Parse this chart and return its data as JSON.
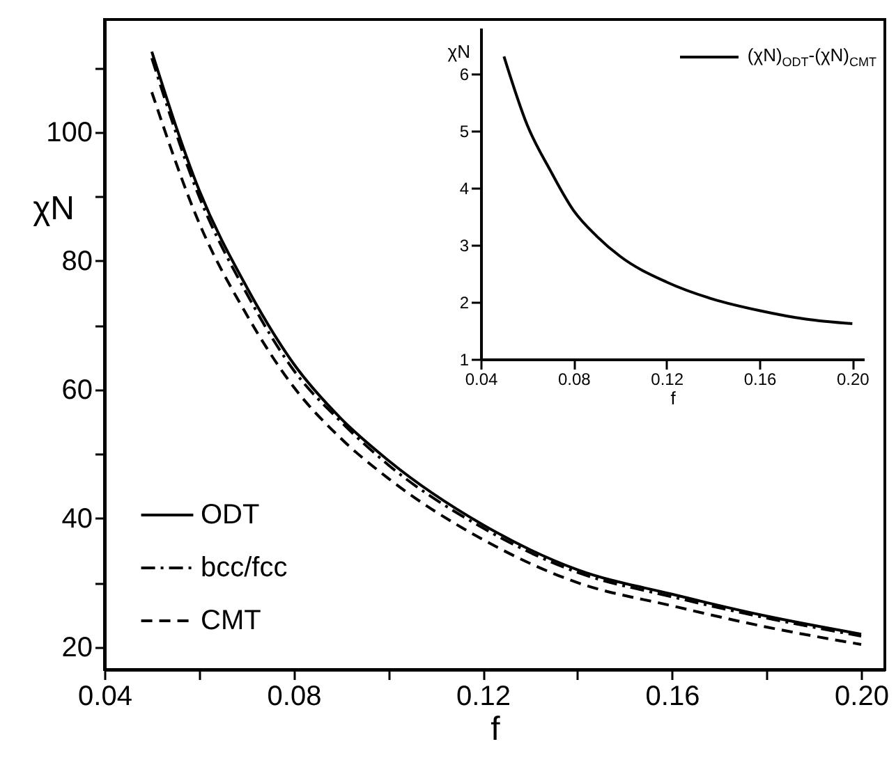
{
  "chart_data": [
    {
      "type": "line",
      "xlabel": "f",
      "ylabel": "χN",
      "x": [
        0.05,
        0.06,
        0.07,
        0.08,
        0.09,
        0.1,
        0.12,
        0.14,
        0.16,
        0.18,
        0.2
      ],
      "series": [
        {
          "name": "ODT",
          "color": "#000000",
          "line_style": "solid",
          "values": [
            112.5,
            91,
            76,
            64,
            55.5,
            49,
            39,
            32,
            28.2,
            24.8,
            22
          ]
        },
        {
          "name": "bcc/fcc",
          "color": "#000000",
          "line_style": "dashdot",
          "values": [
            111.5,
            90,
            75,
            63,
            55,
            48.3,
            38.5,
            31.6,
            27.8,
            24.5,
            21.7
          ]
        },
        {
          "name": "CMT",
          "color": "#000000",
          "line_style": "dashed",
          "values": [
            106.2,
            85.9,
            71.7,
            60.4,
            52.4,
            46.2,
            36.7,
            30,
            26.4,
            23.1,
            20.4
          ]
        }
      ],
      "xlim": [
        0.04,
        0.205
      ],
      "ylim": [
        16.5,
        117.5
      ],
      "xticks": [
        0.04,
        {
          "value": 0.06,
          "label": null
        },
        0.08,
        {
          "value": 0.1,
          "label": null
        },
        0.12,
        {
          "value": 0.14,
          "label": null
        },
        0.16,
        {
          "value": 0.18,
          "label": null
        },
        {
          "value": 0.2,
          "label": "0.20"
        }
      ],
      "yticks": [
        20,
        {
          "value": 30,
          "label": null
        },
        40,
        {
          "value": 50,
          "label": null
        },
        60,
        {
          "value": 70,
          "label": null
        },
        80,
        {
          "value": 90,
          "label": null
        },
        100,
        {
          "value": 110,
          "label": null
        }
      ],
      "grid": false,
      "legend": "bottom left"
    },
    {
      "type": "line",
      "xlabel": "f",
      "ylabel": "χN",
      "x": [
        0.05,
        0.06,
        0.07,
        0.08,
        0.09,
        0.1,
        0.12,
        0.14,
        0.16,
        0.18,
        0.2
      ],
      "series": [
        {
          "name": "(χN)$_{ODT}$-(χN)$_{CMT}$",
          "color": "#000000",
          "line_style": "solid",
          "values": [
            6.3,
            5.1,
            4.3,
            3.6,
            3.15,
            2.8,
            2.35,
            2.05,
            1.85,
            1.7,
            1.62
          ]
        }
      ],
      "xlim": [
        0.04,
        0.205
      ],
      "ylim": [
        1,
        6.8
      ],
      "xticks": [
        0.04,
        0.08,
        0.12,
        0.16,
        {
          "value": 0.2,
          "label": "0.20"
        }
      ],
      "yticks": [
        1,
        2,
        3,
        4,
        5,
        6
      ],
      "grid": false,
      "legend": "top right"
    }
  ]
}
